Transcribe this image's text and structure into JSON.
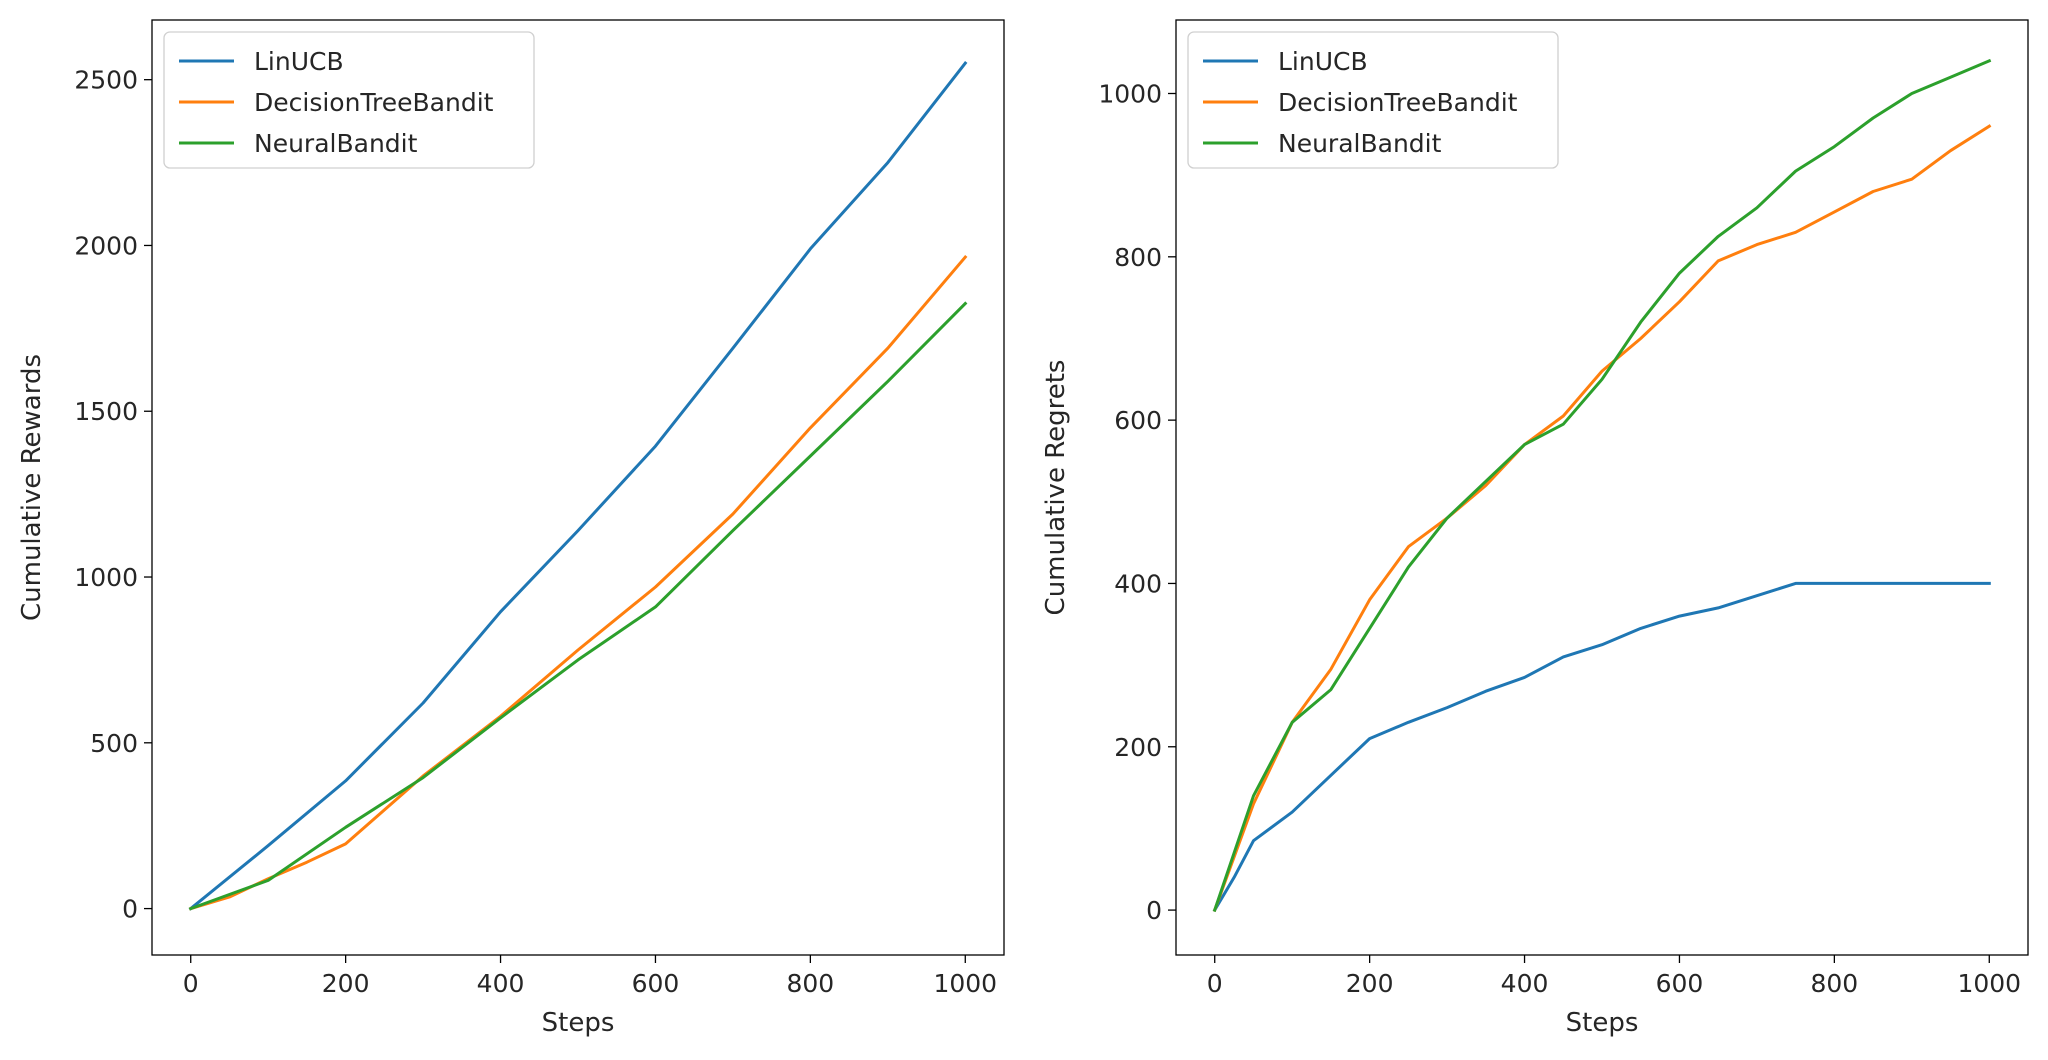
{
  "chart_data": [
    {
      "type": "line",
      "title": "",
      "xlabel": "Steps",
      "ylabel": "Cumulative Rewards",
      "xlim": [
        -50,
        1050
      ],
      "ylim": [
        -140,
        2680
      ],
      "xticks": [
        0,
        200,
        400,
        600,
        800,
        1000
      ],
      "yticks": [
        0,
        500,
        1000,
        1500,
        2000,
        2500
      ],
      "grid": false,
      "legend": "top-left",
      "series": [
        {
          "name": "LinUCB",
          "color": "#1f77b4",
          "x": [
            0,
            100,
            200,
            300,
            400,
            500,
            600,
            700,
            800,
            900,
            1000
          ],
          "y": [
            0,
            190,
            385,
            620,
            895,
            1140,
            1395,
            1690,
            1990,
            2250,
            2550
          ]
        },
        {
          "name": "DecisionTreeBandit",
          "color": "#ff7f0e",
          "x": [
            0,
            50,
            100,
            150,
            200,
            300,
            400,
            500,
            600,
            700,
            800,
            900,
            1000
          ],
          "y": [
            0,
            35,
            90,
            140,
            195,
            400,
            580,
            780,
            970,
            1190,
            1450,
            1690,
            1965
          ]
        },
        {
          "name": "NeuralBandit",
          "color": "#2ca02c",
          "x": [
            0,
            100,
            200,
            300,
            400,
            500,
            600,
            700,
            800,
            900,
            1000
          ],
          "y": [
            0,
            85,
            245,
            395,
            575,
            750,
            910,
            1140,
            1365,
            1590,
            1825
          ]
        }
      ]
    },
    {
      "type": "line",
      "title": "",
      "xlabel": "Steps",
      "ylabel": "Cumulative Regrets",
      "xlim": [
        -50,
        1050
      ],
      "ylim": [
        -55,
        1090
      ],
      "xticks": [
        0,
        200,
        400,
        600,
        800,
        1000
      ],
      "yticks": [
        0,
        200,
        400,
        600,
        800,
        1000
      ],
      "grid": false,
      "legend": "top-left",
      "series": [
        {
          "name": "LinUCB",
          "color": "#1f77b4",
          "x": [
            0,
            25,
            50,
            100,
            150,
            200,
            250,
            300,
            350,
            400,
            450,
            500,
            550,
            600,
            650,
            700,
            750,
            800,
            850,
            900,
            950,
            1000
          ],
          "y": [
            0,
            40,
            85,
            120,
            165,
            210,
            230,
            248,
            268,
            285,
            310,
            325,
            345,
            360,
            370,
            385,
            400,
            400,
            400,
            400,
            400,
            400
          ]
        },
        {
          "name": "DecisionTreeBandit",
          "color": "#ff7f0e",
          "x": [
            0,
            50,
            100,
            150,
            200,
            250,
            300,
            350,
            400,
            450,
            500,
            550,
            600,
            650,
            700,
            750,
            800,
            850,
            900,
            950,
            1000
          ],
          "y": [
            0,
            130,
            230,
            295,
            380,
            445,
            480,
            520,
            570,
            605,
            660,
            700,
            745,
            795,
            815,
            830,
            855,
            880,
            895,
            930,
            960
          ]
        },
        {
          "name": "NeuralBandit",
          "color": "#2ca02c",
          "x": [
            0,
            50,
            100,
            150,
            200,
            250,
            300,
            350,
            400,
            450,
            500,
            550,
            600,
            650,
            700,
            750,
            800,
            850,
            900,
            950,
            1000
          ],
          "y": [
            0,
            140,
            230,
            270,
            345,
            420,
            480,
            525,
            570,
            595,
            650,
            720,
            780,
            825,
            860,
            905,
            935,
            970,
            1000,
            1020,
            1040
          ]
        }
      ]
    }
  ]
}
